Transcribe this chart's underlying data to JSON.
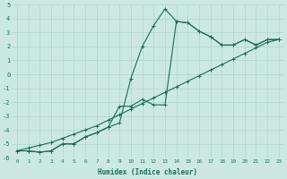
{
  "xlabel": "Humidex (Indice chaleur)",
  "x": [
    0,
    1,
    2,
    3,
    4,
    5,
    6,
    7,
    8,
    9,
    10,
    11,
    12,
    13,
    14,
    15,
    16,
    17,
    18,
    19,
    20,
    21,
    22,
    23
  ],
  "line1": [
    -5.5,
    -5.5,
    -5.6,
    -5.5,
    -5.0,
    -5.0,
    -4.5,
    -4.2,
    -3.8,
    -3.5,
    -0.3,
    2.0,
    3.5,
    4.7,
    3.8,
    3.7,
    3.1,
    2.7,
    2.1,
    2.1,
    2.5,
    2.1,
    2.5,
    2.5
  ],
  "line2": [
    -5.5,
    -5.5,
    -5.6,
    -5.5,
    -5.0,
    -5.0,
    -4.5,
    -4.2,
    -3.8,
    -2.3,
    -2.3,
    -1.8,
    -2.2,
    -2.2,
    3.8,
    3.7,
    3.1,
    2.7,
    2.1,
    2.1,
    2.5,
    2.1,
    2.5,
    2.5
  ],
  "line3": [
    -5.5,
    -5.3,
    -5.1,
    -4.9,
    -4.6,
    -4.3,
    -4.0,
    -3.7,
    -3.3,
    -2.9,
    -2.5,
    -2.1,
    -1.7,
    -1.3,
    -0.9,
    -0.5,
    -0.1,
    0.3,
    0.7,
    1.1,
    1.5,
    1.9,
    2.3,
    2.5
  ],
  "bg_color": "#cce9e1",
  "grid_color": "#aed4ca",
  "line_color": "#1a6b5a",
  "ylim": [
    -6,
    5
  ],
  "xlim": [
    -0.5,
    23.5
  ]
}
